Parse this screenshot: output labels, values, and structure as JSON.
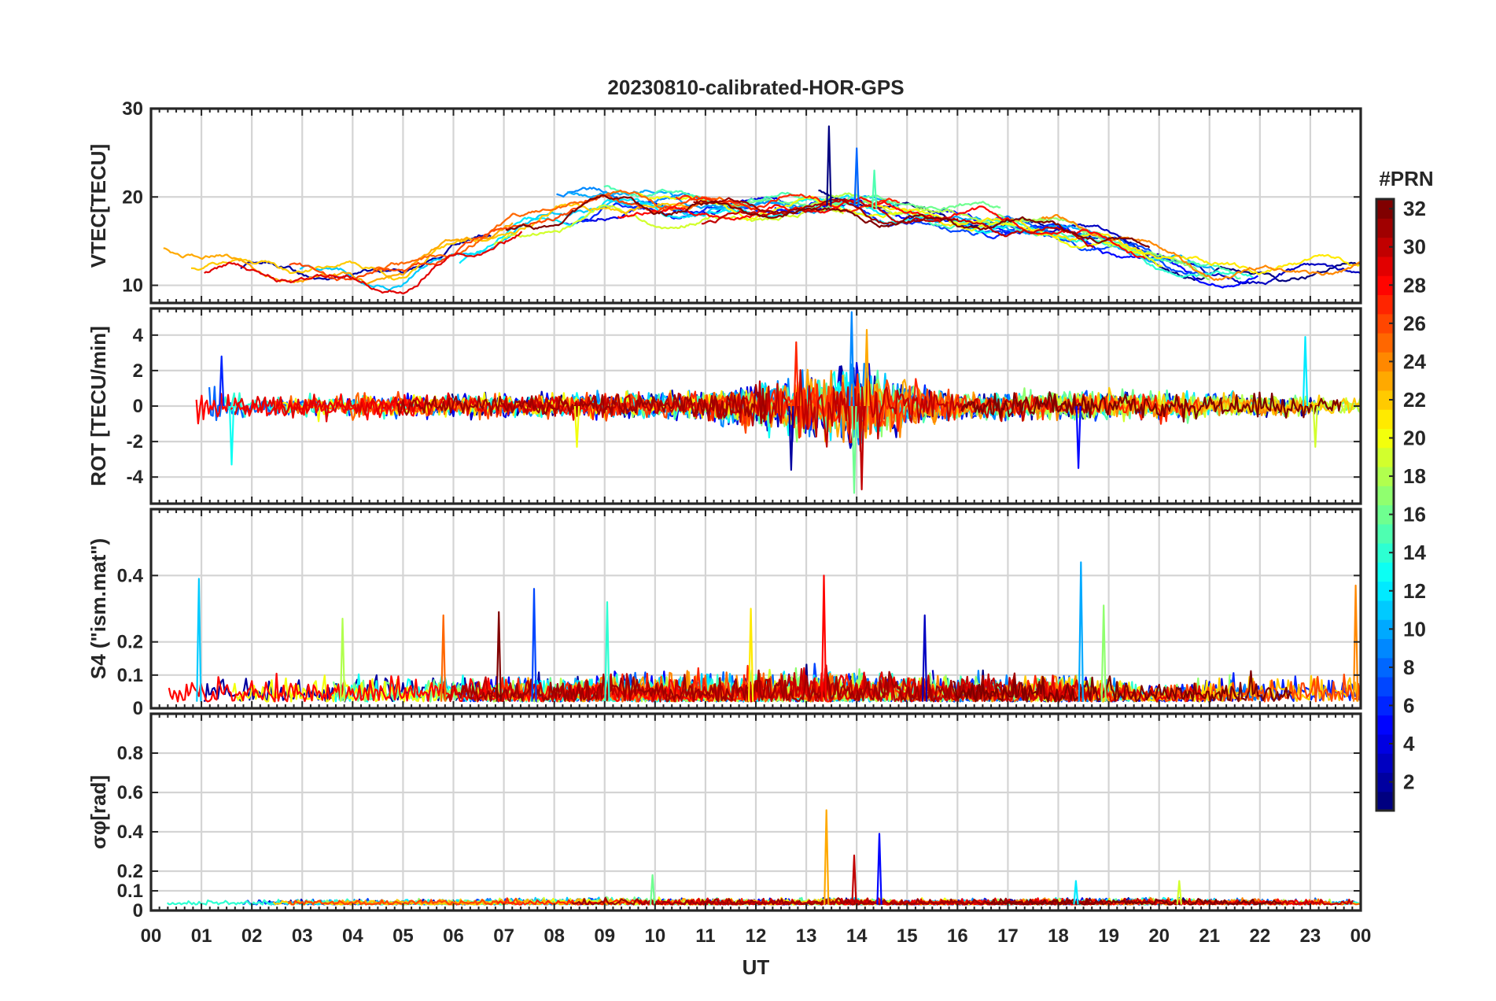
{
  "chart_data": {
    "type": "line",
    "title": "20230810-calibrated-HOR-GPS",
    "xlabel": "UT",
    "x_tick_labels": [
      "00",
      "01",
      "02",
      "03",
      "04",
      "05",
      "06",
      "07",
      "08",
      "09",
      "10",
      "11",
      "12",
      "13",
      "14",
      "15",
      "16",
      "17",
      "18",
      "19",
      "20",
      "21",
      "22",
      "23",
      "00"
    ],
    "xlim": [
      0,
      24
    ],
    "grid": true,
    "colorbar": {
      "label": "#PRN",
      "range": [
        1,
        32
      ],
      "colormap": "jet",
      "tick_labels": [
        "2",
        "4",
        "6",
        "8",
        "10",
        "12",
        "14",
        "16",
        "18",
        "20",
        "22",
        "24",
        "26",
        "28",
        "30",
        "32"
      ]
    },
    "panels": [
      {
        "name": "vtec",
        "ylabel": "VTEC[TECU]",
        "ylim": [
          8,
          30
        ],
        "y_ticks": [
          10,
          20,
          30
        ],
        "y_tick_labels": [
          "10",
          "20",
          "30"
        ],
        "baseline": 13,
        "series_style": "smooth",
        "description": "vertical TEC per satellite; background ~10-14 at night, ~16-22 during day, peak ~28 near 13.5 UT",
        "envelope": {
          "hours": [
            0,
            2,
            4,
            5,
            6,
            8,
            9,
            10,
            12,
            13,
            14,
            15,
            17,
            18,
            19,
            20,
            21,
            22,
            24
          ],
          "values": [
            13,
            12,
            11,
            11,
            14,
            18,
            19.5,
            19,
            18.5,
            19,
            19,
            18,
            17,
            16.5,
            15,
            13,
            11,
            11,
            11.5
          ]
        },
        "spikes": [
          {
            "hour": 13.45,
            "value": 28
          },
          {
            "hour": 14.0,
            "value": 25.5
          },
          {
            "hour": 14.35,
            "value": 23
          }
        ]
      },
      {
        "name": "rot",
        "ylabel": "ROT [TECU/min]",
        "ylim": [
          -5.5,
          5.5
        ],
        "y_ticks": [
          -4,
          -2,
          0,
          2,
          4
        ],
        "y_tick_labels": [
          "-4",
          "-2",
          "0",
          "2",
          "4"
        ],
        "baseline": 0,
        "series_style": "noisy",
        "description": "rate of TEC; scatter mostly within +/-1, bursts to +/-5 at 13-14.5 UT",
        "envelope": {
          "hours": [
            0,
            1,
            2,
            5,
            8,
            11,
            12,
            13,
            14,
            15,
            16,
            20,
            22,
            24
          ],
          "values": [
            0.6,
            0.7,
            0.4,
            0.4,
            0.4,
            0.5,
            0.8,
            1.2,
            1.5,
            0.8,
            0.5,
            0.5,
            0.4,
            0.3
          ]
        },
        "spikes": [
          {
            "hour": 1.4,
            "value": 2.8
          },
          {
            "hour": 1.6,
            "value": -3.3
          },
          {
            "hour": 8.45,
            "value": -2.3
          },
          {
            "hour": 12.8,
            "value": 3.6
          },
          {
            "hour": 12.7,
            "value": -3.6
          },
          {
            "hour": 13.9,
            "value": 5.3
          },
          {
            "hour": 13.95,
            "value": -4.9
          },
          {
            "hour": 14.2,
            "value": 4.3
          },
          {
            "hour": 14.1,
            "value": -4.7
          },
          {
            "hour": 18.4,
            "value": -3.5
          },
          {
            "hour": 22.9,
            "value": 3.9
          },
          {
            "hour": 23.1,
            "value": -2.3
          }
        ]
      },
      {
        "name": "s4",
        "ylabel": "S4 (\"ism.mat\")",
        "ylim": [
          0,
          0.6
        ],
        "y_ticks": [
          0,
          0.1,
          0.2,
          0.4
        ],
        "y_tick_labels": [
          "0",
          "0.1",
          "0.2",
          "0.4"
        ],
        "baseline": 0.02,
        "series_style": "positive",
        "description": "amplitude scintillation index; mostly < 0.1 with bursts 0.2-0.45",
        "envelope": {
          "hours": [
            0,
            1,
            3,
            6,
            8,
            9,
            12,
            13.5,
            15,
            16,
            18.5,
            20,
            22.5,
            24
          ],
          "values": [
            0.04,
            0.05,
            0.04,
            0.05,
            0.04,
            0.05,
            0.05,
            0.06,
            0.05,
            0.05,
            0.05,
            0.03,
            0.05,
            0.04
          ]
        },
        "spikes": [
          {
            "hour": 0.95,
            "value": 0.39
          },
          {
            "hour": 3.8,
            "value": 0.27
          },
          {
            "hour": 5.8,
            "value": 0.28
          },
          {
            "hour": 6.9,
            "value": 0.29
          },
          {
            "hour": 7.6,
            "value": 0.36
          },
          {
            "hour": 9.05,
            "value": 0.32
          },
          {
            "hour": 11.9,
            "value": 0.3
          },
          {
            "hour": 13.35,
            "value": 0.4
          },
          {
            "hour": 15.35,
            "value": 0.28
          },
          {
            "hour": 18.45,
            "value": 0.44
          },
          {
            "hour": 18.9,
            "value": 0.31
          },
          {
            "hour": 23.9,
            "value": 0.37
          }
        ]
      },
      {
        "name": "sigma_phi",
        "ylabel": "σφ[rad]",
        "ylim": [
          0,
          1.0
        ],
        "y_ticks": [
          0,
          0.1,
          0.2,
          0.4,
          0.6,
          0.8
        ],
        "y_tick_labels": [
          "0",
          "0.1",
          "0.2",
          "0.4",
          "0.6",
          "0.8"
        ],
        "baseline": 0.03,
        "series_style": "positive",
        "description": "phase scintillation; flat ~0.03-0.05 with spikes near 13.4-14.5 UT",
        "envelope": {
          "hours": [
            0,
            6,
            9,
            12,
            13.5,
            15,
            20,
            24
          ],
          "values": [
            0.015,
            0.015,
            0.02,
            0.015,
            0.02,
            0.015,
            0.02,
            0.015
          ]
        },
        "spikes": [
          {
            "hour": 9.95,
            "value": 0.18
          },
          {
            "hour": 13.4,
            "value": 0.51
          },
          {
            "hour": 13.95,
            "value": 0.28
          },
          {
            "hour": 14.45,
            "value": 0.39
          },
          {
            "hour": 18.35,
            "value": 0.15
          },
          {
            "hour": 20.4,
            "value": 0.15
          }
        ]
      }
    ]
  }
}
